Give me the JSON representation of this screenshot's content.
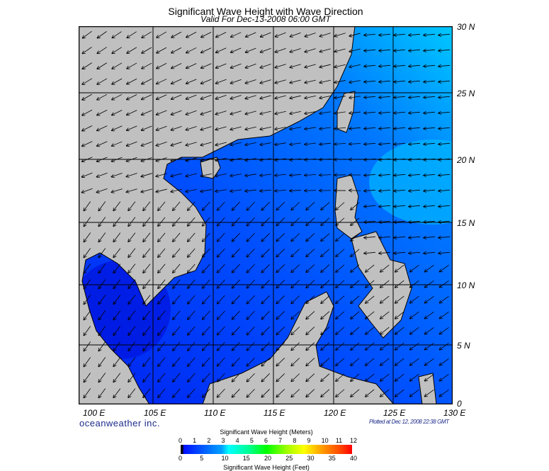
{
  "title": "Significant Wave Height with Wave Direction",
  "subtitle": "Valid For Dec-13-2008 06:00 GMT",
  "longitude_labels": [
    "100 E",
    "105 E",
    "110 E",
    "115 E",
    "120 E",
    "125 E",
    "130 E"
  ],
  "latitude_labels": [
    "30 N",
    "25 N",
    "20 N",
    "15 N",
    "10 N",
    "5 N",
    "0"
  ],
  "brand": "oceanweather inc.",
  "plotted": "Plotted at Dec 12, 2008 22:38 GMT",
  "colorbar": {
    "meters_title": "Significant Wave Height (Meters)",
    "meters_ticks": [
      "0",
      "1",
      "2",
      "3",
      "4",
      "5",
      "6",
      "7",
      "8",
      "9",
      "10",
      "11",
      "12"
    ],
    "feet_title": "Significant Wave Height (Feet)",
    "feet_ticks": [
      "0",
      "5",
      "10",
      "15",
      "20",
      "25",
      "30",
      "35",
      "40"
    ]
  },
  "colors": {
    "land": "#c0c0c0",
    "ocean_low": "#0030ff",
    "ocean_mid": "#0070ff",
    "ocean_high": "#00d0ff"
  }
}
